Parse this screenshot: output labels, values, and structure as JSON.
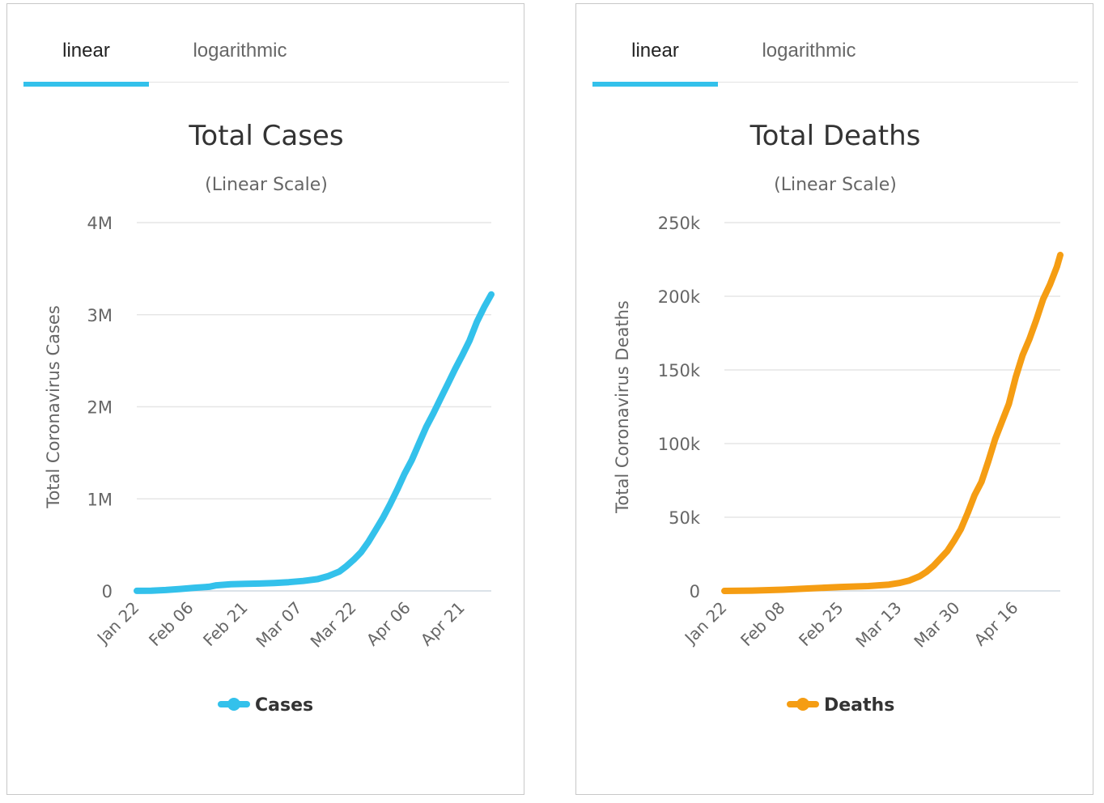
{
  "panels": [
    {
      "tabs": [
        "linear",
        "logarithmic"
      ],
      "active_tab": 0
    },
    {
      "tabs": [
        "linear",
        "logarithmic"
      ],
      "active_tab": 0
    }
  ],
  "chart_data": [
    {
      "type": "line",
      "title": "Total Cases",
      "subtitle": "(Linear Scale)",
      "xlabel": "",
      "ylabel": "Total Coronavirus Cases",
      "ylim": [
        0,
        4000000
      ],
      "y_ticks": [
        0,
        1000000,
        2000000,
        3000000,
        4000000
      ],
      "y_tick_labels": [
        "0",
        "1M",
        "2M",
        "3M",
        "4M"
      ],
      "x_ticks": [
        "2020-01-22",
        "2020-02-06",
        "2020-02-21",
        "2020-03-07",
        "2020-03-22",
        "2020-04-06",
        "2020-04-21"
      ],
      "x_tick_labels": [
        "Jan 22",
        "Feb 06",
        "Feb 21",
        "Mar 07",
        "Mar 22",
        "Apr 06",
        "Apr 21"
      ],
      "x_range": [
        "2020-01-22",
        "2020-04-29"
      ],
      "grid": true,
      "legend": "bottom-center",
      "series": [
        {
          "name": "Cases",
          "color": "#33c1eb",
          "x": [
            "2020-01-22",
            "2020-01-26",
            "2020-01-30",
            "2020-02-03",
            "2020-02-07",
            "2020-02-11",
            "2020-02-13",
            "2020-02-17",
            "2020-02-21",
            "2020-02-25",
            "2020-02-29",
            "2020-03-04",
            "2020-03-08",
            "2020-03-12",
            "2020-03-15",
            "2020-03-18",
            "2020-03-20",
            "2020-03-22",
            "2020-03-24",
            "2020-03-26",
            "2020-03-28",
            "2020-03-30",
            "2020-04-01",
            "2020-04-03",
            "2020-04-05",
            "2020-04-07",
            "2020-04-09",
            "2020-04-11",
            "2020-04-13",
            "2020-04-15",
            "2020-04-17",
            "2020-04-19",
            "2020-04-21",
            "2020-04-23",
            "2020-04-25",
            "2020-04-27",
            "2020-04-29"
          ],
          "values": [
            600,
            2100,
            9900,
            20700,
            34500,
            45000,
            60300,
            72500,
            76800,
            80400,
            86000,
            95000,
            108000,
            128000,
            162000,
            210000,
            270000,
            340000,
            420000,
            530000,
            660000,
            790000,
            940000,
            1100000,
            1270000,
            1420000,
            1600000,
            1780000,
            1930000,
            2090000,
            2250000,
            2410000,
            2560000,
            2720000,
            2920000,
            3080000,
            3220000
          ]
        }
      ]
    },
    {
      "type": "line",
      "title": "Total Deaths",
      "subtitle": "(Linear Scale)",
      "xlabel": "",
      "ylabel": "Total Coronavirus Deaths",
      "ylim": [
        0,
        250000
      ],
      "y_ticks": [
        0,
        50000,
        100000,
        150000,
        200000,
        250000
      ],
      "y_tick_labels": [
        "0",
        "50k",
        "100k",
        "150k",
        "200k",
        "250k"
      ],
      "x_ticks": [
        "2020-01-22",
        "2020-02-08",
        "2020-02-25",
        "2020-03-13",
        "2020-03-30",
        "2020-04-16"
      ],
      "x_tick_labels": [
        "Jan 22",
        "Feb 08",
        "Feb 25",
        "Mar 13",
        "Mar 30",
        "Apr 16"
      ],
      "x_range": [
        "2020-01-22",
        "2020-04-29"
      ],
      "grid": true,
      "legend": "bottom-center",
      "series": [
        {
          "name": "Deaths",
          "color": "#f59d13",
          "x": [
            "2020-01-22",
            "2020-01-30",
            "2020-02-08",
            "2020-02-16",
            "2020-02-25",
            "2020-03-04",
            "2020-03-10",
            "2020-03-13",
            "2020-03-16",
            "2020-03-19",
            "2020-03-21",
            "2020-03-23",
            "2020-03-25",
            "2020-03-27",
            "2020-03-29",
            "2020-03-31",
            "2020-04-02",
            "2020-04-04",
            "2020-04-06",
            "2020-04-08",
            "2020-04-10",
            "2020-04-12",
            "2020-04-14",
            "2020-04-16",
            "2020-04-18",
            "2020-04-20",
            "2020-04-22",
            "2020-04-24",
            "2020-04-26",
            "2020-04-28",
            "2020-04-29"
          ],
          "values": [
            17,
            213,
            806,
            1700,
            2700,
            3300,
            4300,
            5400,
            7100,
            10000,
            13000,
            17000,
            22000,
            27000,
            34000,
            42000,
            53000,
            65000,
            74000,
            88000,
            103000,
            115000,
            127000,
            145000,
            160000,
            171000,
            184000,
            198000,
            208000,
            220000,
            228000
          ]
        }
      ]
    }
  ]
}
